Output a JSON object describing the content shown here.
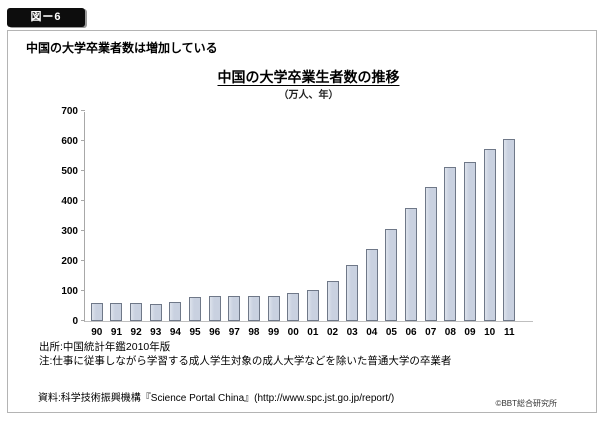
{
  "page": {
    "badge": "図ー6",
    "heading": "中国の大学卒業者数は増加している",
    "source_note": "出所:中国統計年鑑2010年版",
    "note": "注:仕事に従事しながら学習する成人学生対象の成人大学などを除いた普通大学の卒業者",
    "reference": "資料:科学技術振興機構『Science Portal China』(http://www.spc.jst.go.jp/report/)",
    "copyright": "©BBT総合研究所"
  },
  "chart_data": {
    "type": "bar",
    "title": "中国の大学卒業生者数の推移",
    "subtitle": "（万人、年）",
    "categories": [
      "90",
      "91",
      "92",
      "93",
      "94",
      "95",
      "96",
      "97",
      "98",
      "99",
      "00",
      "01",
      "02",
      "03",
      "04",
      "05",
      "06",
      "07",
      "08",
      "09",
      "10",
      "11"
    ],
    "values": [
      61,
      61,
      60,
      57,
      64,
      81,
      84,
      83,
      83,
      85,
      95,
      104,
      134,
      188,
      239,
      307,
      378,
      448,
      512,
      531,
      575,
      608
    ],
    "xlabel": "年",
    "ylabel": "万人",
    "ylim": [
      0,
      700
    ],
    "ytick_step": 100,
    "grid": false,
    "legend": false,
    "bar_fill": "#c9d1e0",
    "bar_border": "#6f7888",
    "axis_color": "#a8a8a8"
  }
}
